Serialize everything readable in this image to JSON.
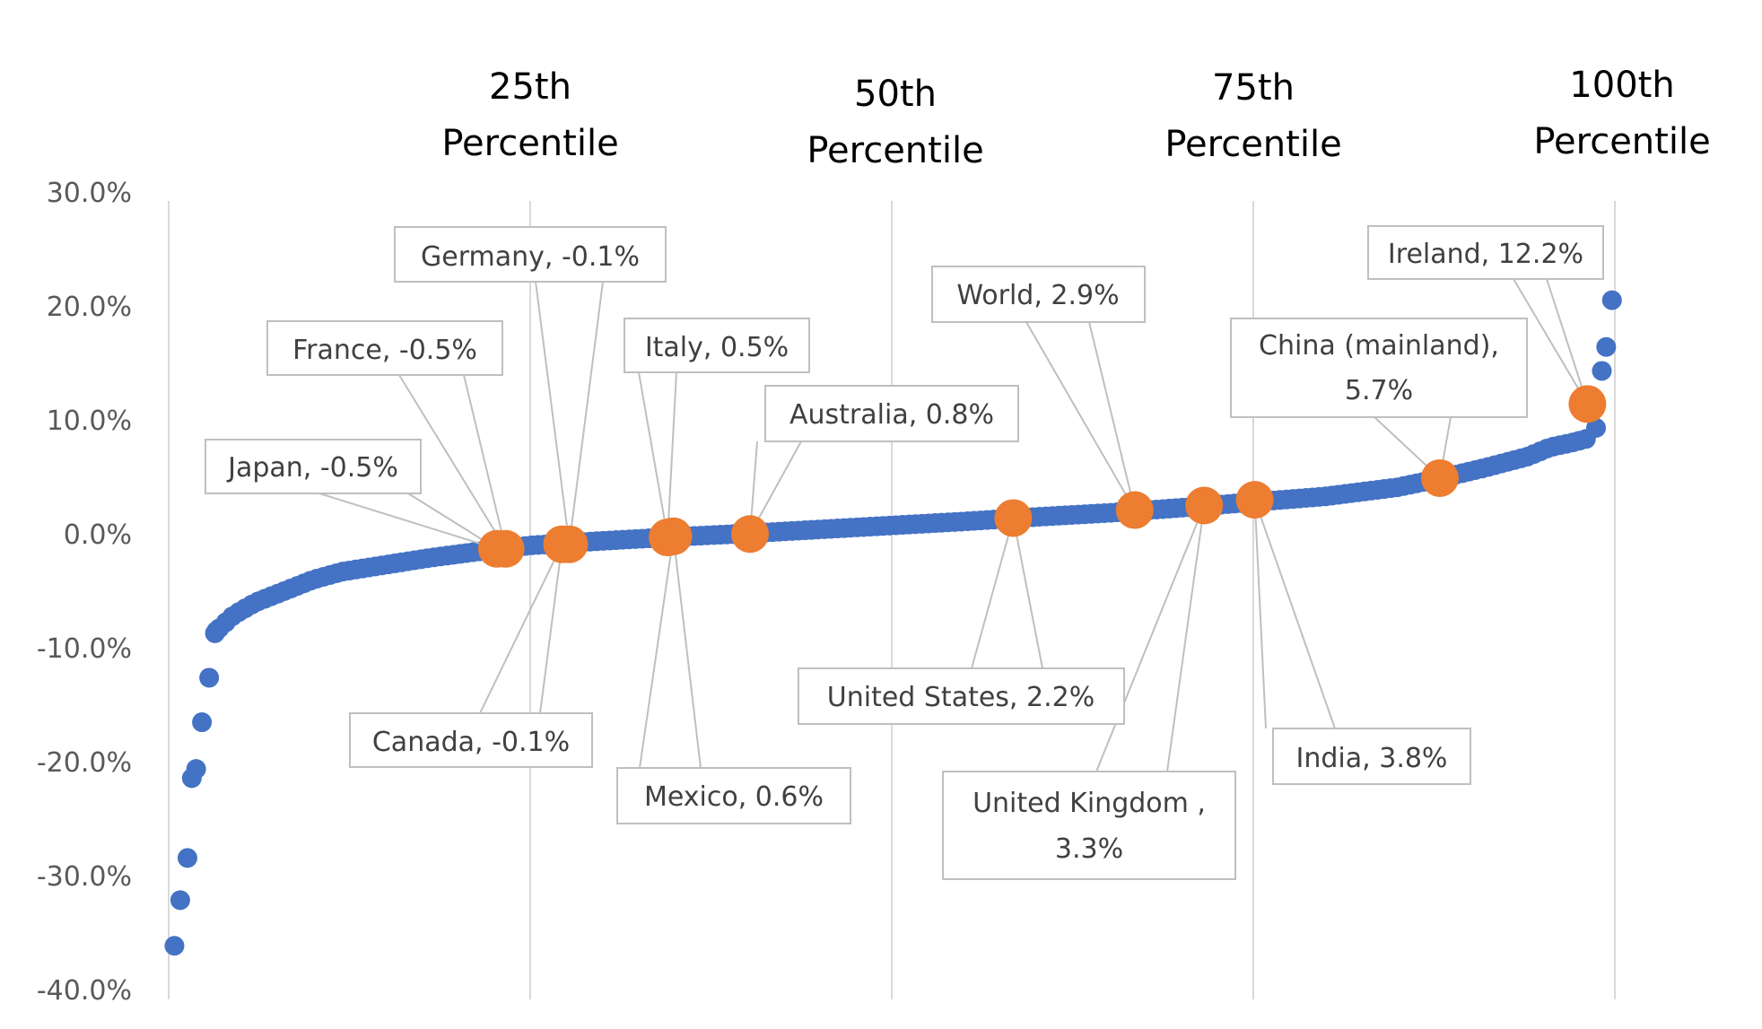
{
  "chart_data": {
    "type": "scatter",
    "ylim": [
      -40,
      30
    ],
    "yticks": [
      30,
      20,
      10,
      0,
      -10,
      -20,
      -30,
      -40
    ],
    "ytick_labels": [
      "30.0%",
      "20.0%",
      "10.0%",
      "0.0%",
      "-10.0%",
      "-20.0%",
      "-30.0%",
      "-40.0%"
    ],
    "xlim": [
      0,
      100
    ],
    "percentile_lines": [
      {
        "x": 25,
        "line1": "25th",
        "line2": "Percentile"
      },
      {
        "x": 50,
        "line1": "50th",
        "line2": "Percentile"
      },
      {
        "x": 75,
        "line1": "75th",
        "line2": "Percentile"
      },
      {
        "x": 100,
        "line1": "100th",
        "line2": "Percentile"
      }
    ],
    "colors": {
      "series": "#4472C4",
      "highlight": "#ED7D31"
    },
    "series": [
      {
        "x": [
          0.4,
          0.8,
          1.3,
          1.6,
          1.9,
          2.3,
          2.8,
          3.2,
          3.3
        ],
        "values": [
          -35.3,
          -31.3,
          -27.6,
          -20.6,
          -19.8,
          -15.7,
          -11.8,
          -7.9,
          -7.7
        ]
      },
      {
        "x": [
          98.7,
          99.1,
          99.4,
          99.8
        ],
        "values": [
          10.1,
          15.1,
          17.2,
          21.3
        ]
      }
    ],
    "highlighted": [
      {
        "name": "Japan",
        "label": "Japan, -0.5%",
        "x": 22.7,
        "y": -0.5
      },
      {
        "name": "France",
        "label": "France, -0.5%",
        "x": 23.3,
        "y": -0.5
      },
      {
        "name": "Canada",
        "label": "Canada, -0.1%",
        "x": 27.2,
        "y": -0.1
      },
      {
        "name": "Germany",
        "label": "Germany, -0.1%",
        "x": 27.7,
        "y": -0.1
      },
      {
        "name": "Italy",
        "label": "Italy, 0.5%",
        "x": 34.5,
        "y": 0.5
      },
      {
        "name": "Mexico",
        "label": "Mexico, 0.6%",
        "x": 34.9,
        "y": 0.6
      },
      {
        "name": "Australia",
        "label": "Australia, 0.8%",
        "x": 40.2,
        "y": 0.8
      },
      {
        "name": "United States",
        "label": "United States, 2.2%",
        "x": 58.4,
        "y": 2.2
      },
      {
        "name": "World",
        "label": "World, 2.9%",
        "x": 66.8,
        "y": 2.9
      },
      {
        "name": "United Kingdom",
        "label1": "United Kingdom ,",
        "label2": "3.3%",
        "x": 71.6,
        "y": 3.3
      },
      {
        "name": "India",
        "label": "India, 3.8%",
        "x": 75.1,
        "y": 3.8
      },
      {
        "name": "China (mainland)",
        "label1": "China (mainland),",
        "label2": "5.7%",
        "x": 87.9,
        "y": 5.7
      },
      {
        "name": "Ireland",
        "label": "Ireland, 12.2%",
        "x": 98.1,
        "y": 12.2
      }
    ]
  }
}
